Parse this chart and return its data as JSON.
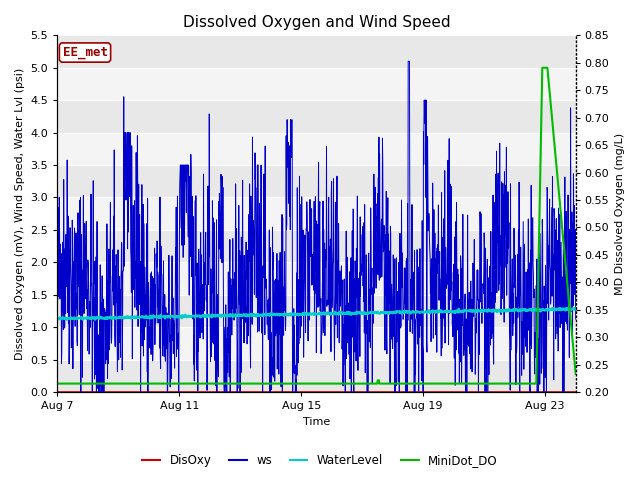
{
  "title": "Dissolved Oxygen and Wind Speed",
  "xlabel": "Time",
  "ylabel_left": "Dissolved Oxygen (mV), Wind Speed, Water Lvl (psi)",
  "ylabel_right": "MD Dissolved Oxygen (mg/L)",
  "annotation": "EE_met",
  "ylim_left": [
    0.0,
    5.5
  ],
  "ylim_right": [
    0.2,
    0.85
  ],
  "yticks_left": [
    0.0,
    0.5,
    1.0,
    1.5,
    2.0,
    2.5,
    3.0,
    3.5,
    4.0,
    4.5,
    5.0,
    5.5
  ],
  "yticks_right": [
    0.2,
    0.25,
    0.3,
    0.35,
    0.4,
    0.45,
    0.5,
    0.55,
    0.6,
    0.65,
    0.7,
    0.75,
    0.8,
    0.85
  ],
  "xtick_labels": [
    "Aug 7",
    "Aug 11",
    "Aug 15",
    "Aug 19",
    "Aug 23"
  ],
  "xtick_positions": [
    0,
    4,
    8,
    12,
    16
  ],
  "xlim": [
    0,
    17
  ],
  "fig_bg_color": "#ffffff",
  "plot_bg_color": "#ffffff",
  "band_color_dark": "#e8e8e8",
  "band_color_light": "#f4f4f4",
  "ws_color": "#0000cc",
  "disoxy_color": "#cc0000",
  "waterlevel_color": "#00cccc",
  "minidot_color": "#00bb00",
  "ws_lw": 0.7,
  "disoxy_lw": 1.2,
  "waterlevel_lw": 1.5,
  "minidot_lw": 1.5,
  "legend_items": [
    "DisOxy",
    "ws",
    "WaterLevel",
    "MiniDot_DO"
  ],
  "legend_colors": [
    "#cc0000",
    "#0000cc",
    "#00cccc",
    "#00bb00"
  ],
  "title_fontsize": 11,
  "label_fontsize": 8,
  "tick_fontsize": 8,
  "annotation_fontsize": 9
}
